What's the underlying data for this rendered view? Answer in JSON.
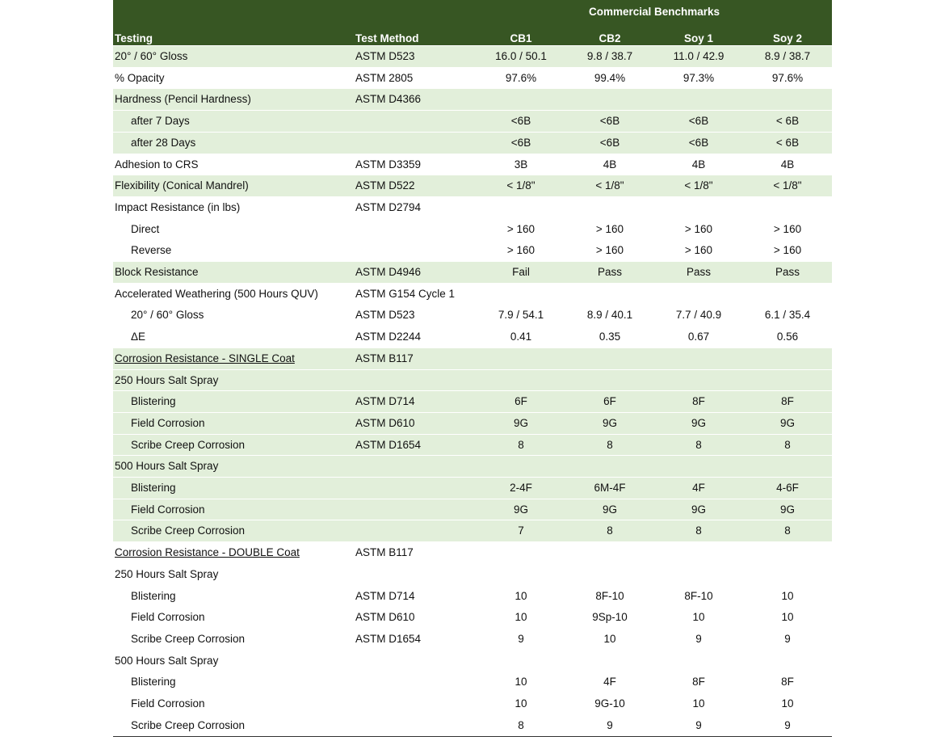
{
  "header": {
    "group_title": "Commercial Benchmarks",
    "columns": [
      "Testing",
      "Test Method",
      "CB1",
      "CB2",
      "Soy 1",
      "Soy 2"
    ]
  },
  "colors": {
    "header_bg": "#375623",
    "shade_bg": "#E2EFDA"
  },
  "rows": [
    {
      "label": "20° / 60° Gloss",
      "method": "ASTM D523",
      "values": [
        "16.0 / 50.1",
        "9.8 / 38.7",
        "11.0 / 42.9",
        "8.9 / 38.7"
      ],
      "indent": false,
      "shade": true
    },
    {
      "label": "% Opacity",
      "method": "ASTM 2805",
      "values": [
        "97.6%",
        "99.4%",
        "97.3%",
        "97.6%"
      ],
      "indent": false,
      "shade": false
    },
    {
      "label": "Hardness (Pencil Hardness)",
      "method": "ASTM D4366",
      "values": [
        "",
        "",
        "",
        ""
      ],
      "indent": false,
      "shade": true
    },
    {
      "label": "after 7 Days",
      "method": "",
      "values": [
        "<6B",
        "<6B",
        "<6B",
        "< 6B"
      ],
      "indent": true,
      "shade": true
    },
    {
      "label": "after 28 Days",
      "method": "",
      "values": [
        "<6B",
        "<6B",
        "<6B",
        "< 6B"
      ],
      "indent": true,
      "shade": true
    },
    {
      "label": "Adhesion to CRS",
      "method": "ASTM D3359",
      "values": [
        "3B",
        "4B",
        "4B",
        "4B"
      ],
      "indent": false,
      "shade": false
    },
    {
      "label": "Flexibility (Conical Mandrel)",
      "method": "ASTM D522",
      "values": [
        "< 1/8\"",
        "< 1/8\"",
        "< 1/8\"",
        "< 1/8\""
      ],
      "indent": false,
      "shade": true
    },
    {
      "label": "Impact Resistance (in lbs)",
      "method": "ASTM D2794",
      "values": [
        "",
        "",
        "",
        ""
      ],
      "indent": false,
      "shade": false
    },
    {
      "label": "Direct",
      "method": "",
      "values": [
        "> 160",
        "> 160",
        "> 160",
        "> 160"
      ],
      "indent": true,
      "shade": false
    },
    {
      "label": "Reverse",
      "method": "",
      "values": [
        "> 160",
        "> 160",
        "> 160",
        "> 160"
      ],
      "indent": true,
      "shade": false
    },
    {
      "label": "Block Resistance",
      "method": "ASTM D4946",
      "values": [
        "Fail",
        "Pass",
        "Pass",
        "Pass"
      ],
      "indent": false,
      "shade": true
    },
    {
      "label": "Accelerated Weathering (500 Hours QUV)",
      "method": "ASTM G154 Cycle 1",
      "values": [
        "",
        "",
        "",
        ""
      ],
      "indent": false,
      "shade": false
    },
    {
      "label": "20° / 60° Gloss",
      "method": "ASTM D523",
      "values": [
        "7.9 / 54.1",
        "8.9 / 40.1",
        "7.7 / 40.9",
        "6.1 / 35.4"
      ],
      "indent": true,
      "shade": false
    },
    {
      "label": "ΔE",
      "method": "ASTM D2244",
      "values": [
        "0.41",
        "0.35",
        "0.67",
        "0.56"
      ],
      "indent": true,
      "shade": false
    },
    {
      "label": "Corrosion Resistance - SINGLE Coat",
      "method": "ASTM B117",
      "values": [
        "",
        "",
        "",
        ""
      ],
      "indent": false,
      "shade": true,
      "underline": true
    },
    {
      "label": "250 Hours Salt Spray",
      "method": "",
      "values": [
        "",
        "",
        "",
        ""
      ],
      "indent": false,
      "shade": true
    },
    {
      "label": "Blistering",
      "method": "ASTM D714",
      "values": [
        "6F",
        "6F",
        "8F",
        "8F"
      ],
      "indent": true,
      "shade": true
    },
    {
      "label": "Field Corrosion",
      "method": "ASTM D610",
      "values": [
        "9G",
        "9G",
        "9G",
        "9G"
      ],
      "indent": true,
      "shade": true
    },
    {
      "label": "Scribe Creep Corrosion",
      "method": "ASTM D1654",
      "values": [
        "8",
        "8",
        "8",
        "8"
      ],
      "indent": true,
      "shade": true
    },
    {
      "label": "500 Hours Salt Spray",
      "method": "",
      "values": [
        "",
        "",
        "",
        ""
      ],
      "indent": false,
      "shade": true
    },
    {
      "label": "Blistering",
      "method": "",
      "values": [
        "2-4F",
        "6M-4F",
        "4F",
        "4-6F"
      ],
      "indent": true,
      "shade": true
    },
    {
      "label": "Field Corrosion",
      "method": "",
      "values": [
        "9G",
        "9G",
        "9G",
        "9G"
      ],
      "indent": true,
      "shade": true
    },
    {
      "label": "Scribe Creep Corrosion",
      "method": "",
      "values": [
        "7",
        "8",
        "8",
        "8"
      ],
      "indent": true,
      "shade": true
    },
    {
      "label": "Corrosion Resistance - DOUBLE Coat",
      "method": "ASTM B117",
      "values": [
        "",
        "",
        "",
        ""
      ],
      "indent": false,
      "shade": false,
      "underline": true
    },
    {
      "label": "250 Hours Salt Spray",
      "method": "",
      "values": [
        "",
        "",
        "",
        ""
      ],
      "indent": false,
      "shade": false
    },
    {
      "label": "Blistering",
      "method": "ASTM D714",
      "values": [
        "10",
        "8F-10",
        "8F-10",
        "10"
      ],
      "indent": true,
      "shade": false
    },
    {
      "label": "Field Corrosion",
      "method": "ASTM D610",
      "values": [
        "10",
        "9Sp-10",
        "10",
        "10"
      ],
      "indent": true,
      "shade": false
    },
    {
      "label": "Scribe Creep Corrosion",
      "method": "ASTM D1654",
      "values": [
        "9",
        "10",
        "9",
        "9"
      ],
      "indent": true,
      "shade": false
    },
    {
      "label": "500 Hours Salt Spray",
      "method": "",
      "values": [
        "",
        "",
        "",
        ""
      ],
      "indent": false,
      "shade": false
    },
    {
      "label": "Blistering",
      "method": "",
      "values": [
        "10",
        "4F",
        "8F",
        "8F"
      ],
      "indent": true,
      "shade": false
    },
    {
      "label": "Field Corrosion",
      "method": "",
      "values": [
        "10",
        "9G-10",
        "10",
        "10"
      ],
      "indent": true,
      "shade": false
    },
    {
      "label": "Scribe Creep Corrosion",
      "method": "",
      "values": [
        "8",
        "9",
        "9",
        "9"
      ],
      "indent": true,
      "shade": false
    }
  ]
}
